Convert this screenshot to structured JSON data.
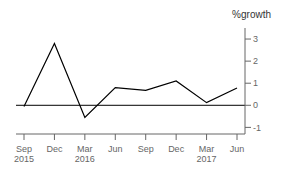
{
  "chart_data": {
    "type": "line",
    "y_label": "%growth",
    "categories": [
      "Sep\n2015",
      "Dec",
      "Mar\n2016",
      "Jun",
      "Sep",
      "Dec",
      "Mar\n2017",
      "Jun"
    ],
    "values": [
      -0.05,
      2.8,
      -0.55,
      0.8,
      0.68,
      1.1,
      0.12,
      0.78
    ],
    "color": "#000000",
    "ylim": [
      -1.3,
      3.5
    ],
    "yticks": [
      -1,
      0,
      1,
      2,
      3
    ],
    "grid": false
  }
}
